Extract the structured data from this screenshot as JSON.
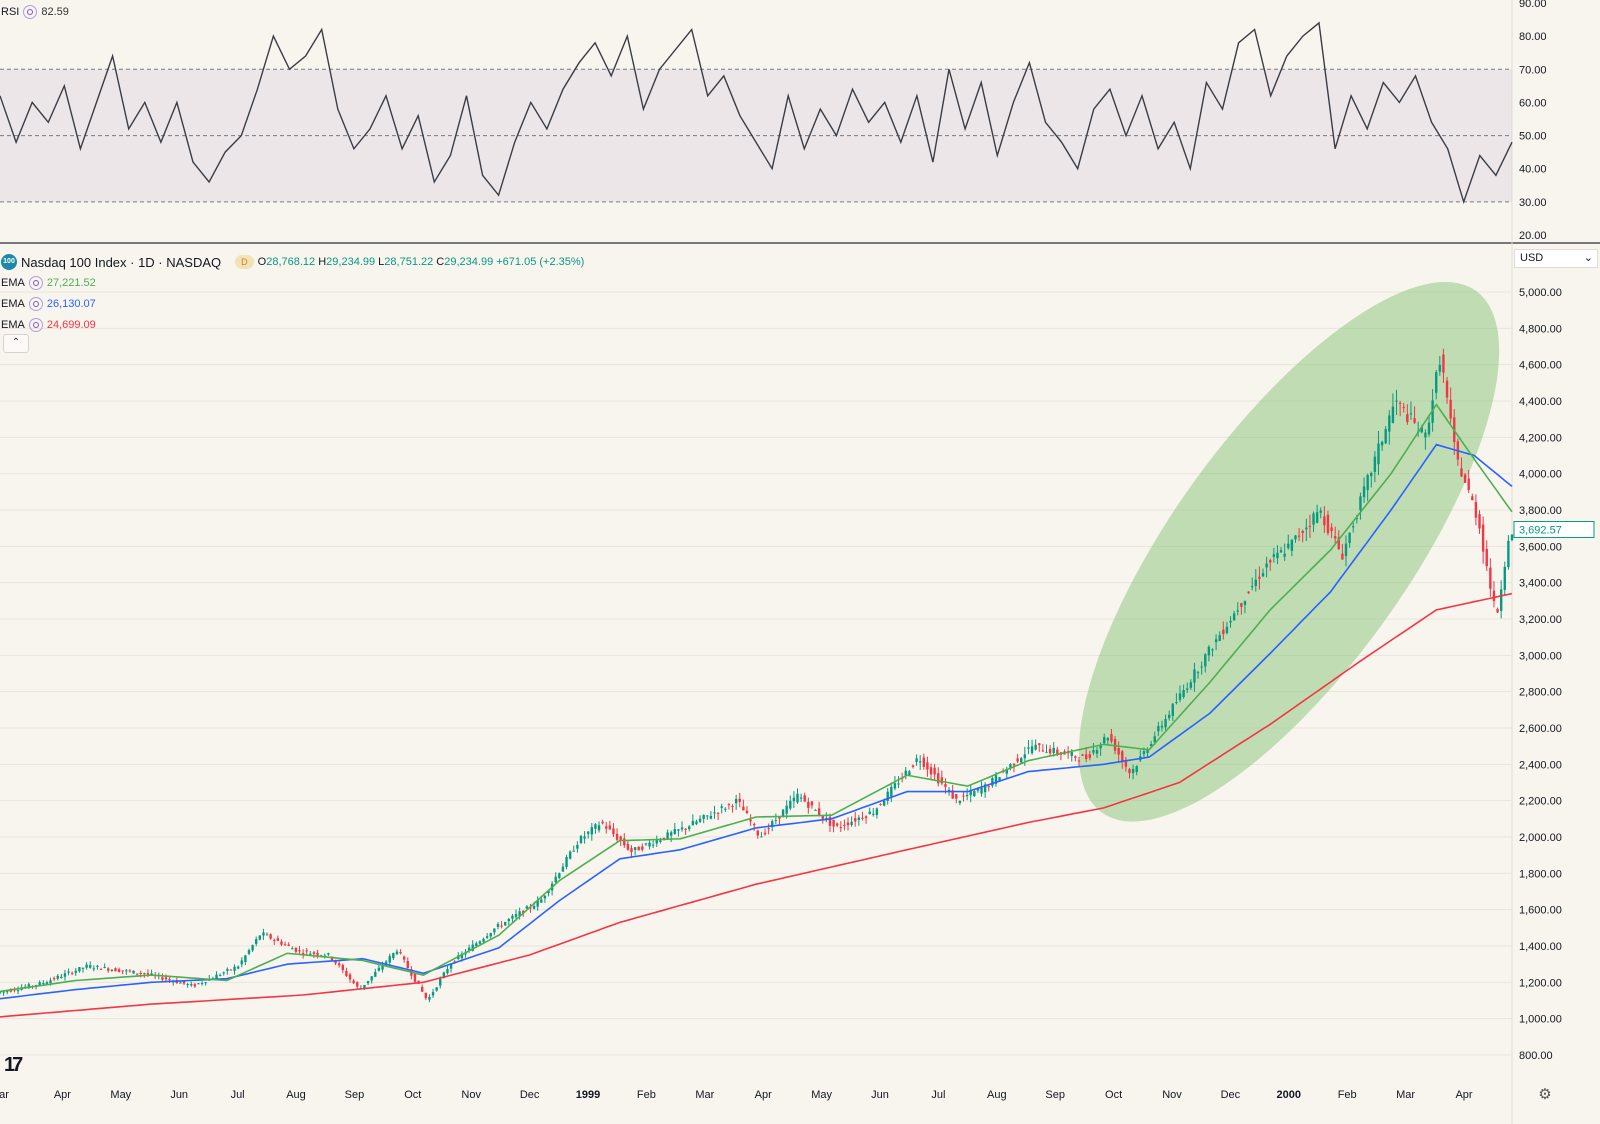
{
  "rsi": {
    "name": "RSI",
    "value": "82.59"
  },
  "symbol": {
    "badge": "100",
    "title": "Nasdaq 100 Index · 1D · NASDAQ",
    "d_badge": "D",
    "open_label": "O",
    "open": "28,768.12",
    "high_label": "H",
    "high": "29,234.99",
    "low_label": "L",
    "low": "28,751.22",
    "close_label": "C",
    "close": "29,234.99",
    "change": "+671.05 (+2.35%)"
  },
  "emas": [
    {
      "name": "EMA",
      "value": "27,221.52",
      "color": "#4caf50"
    },
    {
      "name": "EMA",
      "value": "26,130.07",
      "color": "#2962ff"
    },
    {
      "name": "EMA",
      "value": "24,699.09",
      "color": "#f23645"
    }
  ],
  "currency": "USD",
  "price_tag": "3,692.57",
  "collapse_icon": "chevron-up-icon",
  "chart_data": {
    "type": "candlestick",
    "price_axis": {
      "ticks": [
        "5,000.00",
        "4,800.00",
        "4,600.00",
        "4,400.00",
        "4,200.00",
        "4,000.00",
        "3,800.00",
        "3,600.00",
        "3,400.00",
        "3,200.00",
        "3,000.00",
        "2,800.00",
        "2,600.00",
        "2,400.00",
        "2,200.00",
        "2,000.00",
        "1,800.00",
        "1,600.00",
        "1,400.00",
        "1,200.00",
        "1,000.00",
        "800.00"
      ],
      "range": [
        800,
        5000
      ],
      "grid": true
    },
    "rsi_axis": {
      "ticks": [
        "90.00",
        "80.00",
        "70.00",
        "60.00",
        "50.00",
        "40.00",
        "30.00",
        "20.00"
      ],
      "range": [
        20,
        90
      ],
      "levels": [
        70,
        50,
        30
      ]
    },
    "time_axis": [
      "ar",
      "Apr",
      "May",
      "Jun",
      "Jul",
      "Aug",
      "Sep",
      "Oct",
      "Nov",
      "Dec",
      "1999",
      "Feb",
      "Mar",
      "Apr",
      "May",
      "Jun",
      "Jul",
      "Aug",
      "Sep",
      "Oct",
      "Nov",
      "Dec",
      "2000",
      "Feb",
      "Mar",
      "Apr"
    ],
    "price_path": [
      [
        0,
        1140
      ],
      [
        0.03,
        1195
      ],
      [
        0.06,
        1290
      ],
      [
        0.1,
        1245
      ],
      [
        0.13,
        1180
      ],
      [
        0.16,
        1290
      ],
      [
        0.175,
        1470
      ],
      [
        0.2,
        1370
      ],
      [
        0.22,
        1350
      ],
      [
        0.24,
        1160
      ],
      [
        0.265,
        1380
      ],
      [
        0.285,
        1100
      ],
      [
        0.3,
        1300
      ],
      [
        0.33,
        1500
      ],
      [
        0.36,
        1650
      ],
      [
        0.385,
        1980
      ],
      [
        0.4,
        2080
      ],
      [
        0.42,
        1920
      ],
      [
        0.455,
        2050
      ],
      [
        0.49,
        2200
      ],
      [
        0.505,
        2000
      ],
      [
        0.53,
        2230
      ],
      [
        0.555,
        2050
      ],
      [
        0.58,
        2140
      ],
      [
        0.61,
        2440
      ],
      [
        0.635,
        2200
      ],
      [
        0.655,
        2280
      ],
      [
        0.685,
        2500
      ],
      [
        0.72,
        2430
      ],
      [
        0.735,
        2560
      ],
      [
        0.75,
        2350
      ],
      [
        0.8,
        3000
      ],
      [
        0.84,
        3500
      ],
      [
        0.855,
        3600
      ],
      [
        0.875,
        3800
      ],
      [
        0.89,
        3550
      ],
      [
        0.925,
        4400
      ],
      [
        0.945,
        4200
      ],
      [
        0.955,
        4650
      ],
      [
        0.965,
        4100
      ],
      [
        0.98,
        3750
      ],
      [
        0.992,
        3200
      ],
      [
        1.0,
        3650
      ]
    ],
    "ema_green": [
      [
        0,
        1150
      ],
      [
        0.05,
        1210
      ],
      [
        0.1,
        1240
      ],
      [
        0.15,
        1210
      ],
      [
        0.19,
        1360
      ],
      [
        0.24,
        1320
      ],
      [
        0.28,
        1240
      ],
      [
        0.33,
        1460
      ],
      [
        0.37,
        1760
      ],
      [
        0.41,
        1980
      ],
      [
        0.45,
        1990
      ],
      [
        0.5,
        2110
      ],
      [
        0.55,
        2120
      ],
      [
        0.6,
        2340
      ],
      [
        0.64,
        2280
      ],
      [
        0.68,
        2420
      ],
      [
        0.73,
        2510
      ],
      [
        0.76,
        2480
      ],
      [
        0.8,
        2850
      ],
      [
        0.84,
        3250
      ],
      [
        0.88,
        3580
      ],
      [
        0.92,
        4000
      ],
      [
        0.95,
        4380
      ],
      [
        0.975,
        4080
      ],
      [
        1.0,
        3790
      ]
    ],
    "ema_blue": [
      [
        0,
        1110
      ],
      [
        0.05,
        1160
      ],
      [
        0.1,
        1200
      ],
      [
        0.15,
        1220
      ],
      [
        0.19,
        1300
      ],
      [
        0.24,
        1330
      ],
      [
        0.28,
        1250
      ],
      [
        0.33,
        1390
      ],
      [
        0.37,
        1650
      ],
      [
        0.41,
        1880
      ],
      [
        0.45,
        1930
      ],
      [
        0.5,
        2050
      ],
      [
        0.55,
        2100
      ],
      [
        0.6,
        2250
      ],
      [
        0.64,
        2250
      ],
      [
        0.68,
        2360
      ],
      [
        0.73,
        2400
      ],
      [
        0.76,
        2440
      ],
      [
        0.8,
        2680
      ],
      [
        0.84,
        3010
      ],
      [
        0.88,
        3350
      ],
      [
        0.92,
        3800
      ],
      [
        0.95,
        4160
      ],
      [
        0.975,
        4100
      ],
      [
        1.0,
        3930
      ]
    ],
    "ema_red": [
      [
        0,
        1010
      ],
      [
        0.1,
        1080
      ],
      [
        0.2,
        1130
      ],
      [
        0.28,
        1200
      ],
      [
        0.35,
        1350
      ],
      [
        0.41,
        1530
      ],
      [
        0.5,
        1740
      ],
      [
        0.6,
        1930
      ],
      [
        0.68,
        2080
      ],
      [
        0.73,
        2160
      ],
      [
        0.78,
        2300
      ],
      [
        0.84,
        2620
      ],
      [
        0.9,
        2970
      ],
      [
        0.95,
        3250
      ],
      [
        1.0,
        3340
      ]
    ],
    "rsi_values": [
      62,
      48,
      60,
      54,
      65,
      46,
      60,
      74,
      52,
      60,
      48,
      60,
      42,
      36,
      45,
      50,
      64,
      80,
      70,
      74,
      82,
      58,
      46,
      52,
      62,
      46,
      56,
      36,
      44,
      62,
      38,
      32,
      48,
      60,
      52,
      64,
      72,
      78,
      68,
      80,
      58,
      70,
      76,
      82,
      62,
      68,
      56,
      48,
      40,
      62,
      46,
      58,
      50,
      64,
      54,
      60,
      48,
      62,
      42,
      70,
      52,
      66,
      44,
      60,
      72,
      54,
      48,
      40,
      58,
      64,
      50,
      62,
      46,
      54,
      40,
      66,
      58,
      78,
      82,
      62,
      74,
      80,
      84,
      46,
      62,
      52,
      66,
      60,
      68,
      54,
      46,
      30,
      44,
      38,
      48
    ]
  }
}
